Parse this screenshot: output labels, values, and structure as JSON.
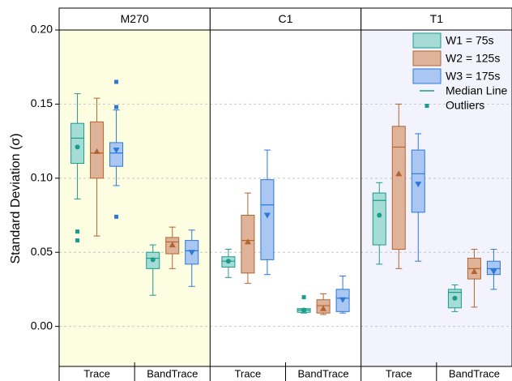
{
  "chart_data": {
    "type": "box",
    "ylabel": "Standard Deviation (σ)",
    "ylim": [
      -0.027,
      0.2
    ],
    "yticks": [
      {
        "value": 0,
        "label": "0.00"
      },
      {
        "value": 0.05,
        "label": "0.05"
      },
      {
        "value": 0.1,
        "label": "0.10"
      },
      {
        "value": 0.15,
        "label": "0.15"
      },
      {
        "value": 0.2,
        "label": "0.20"
      }
    ],
    "grid": true,
    "legend_position": "top-right",
    "median_label": "Median Line",
    "outlier_label": "Outliers",
    "series": [
      {
        "name": "W1 = 75s",
        "color": "#1a9c8c",
        "fill": "#a6dcd6"
      },
      {
        "name": "W2 = 125s",
        "color": "#b3632f",
        "fill": "#deb39a"
      },
      {
        "name": "W3 = 175s",
        "color": "#2b78d6",
        "fill": "#a9c7f2"
      }
    ],
    "panels": [
      {
        "title": "M270",
        "background": "#fdfde2",
        "categories": [
          "Trace",
          "BandTrace"
        ],
        "boxes": [
          [
            {
              "min": 0.086,
              "q1": 0.11,
              "median": 0.127,
              "q3": 0.137,
              "max": 0.157,
              "mean": 0.121,
              "outliers": [
                0.064,
                0.058
              ]
            },
            {
              "min": 0.061,
              "q1": 0.1,
              "median": 0.117,
              "q3": 0.138,
              "max": 0.154,
              "mean": 0.118
            },
            {
              "min": 0.095,
              "q1": 0.108,
              "median": 0.117,
              "q3": 0.124,
              "max": 0.146,
              "mean": 0.119,
              "outliers": [
                0.165,
                0.148,
                0.074
              ]
            }
          ],
          [
            {
              "min": 0.021,
              "q1": 0.039,
              "median": 0.046,
              "q3": 0.05,
              "max": 0.055,
              "mean": 0.045
            },
            {
              "min": 0.039,
              "q1": 0.049,
              "median": 0.057,
              "q3": 0.06,
              "max": 0.067,
              "mean": 0.055
            },
            {
              "min": 0.027,
              "q1": 0.042,
              "median": 0.051,
              "q3": 0.058,
              "max": 0.065,
              "mean": 0.05
            }
          ]
        ]
      },
      {
        "title": "C1",
        "background": "#ffffff",
        "categories": [
          "Trace",
          "BandTrace"
        ],
        "boxes": [
          [
            {
              "min": 0.033,
              "q1": 0.04,
              "median": 0.044,
              "q3": 0.047,
              "max": 0.052,
              "mean": 0.044
            },
            {
              "min": 0.029,
              "q1": 0.036,
              "median": 0.058,
              "q3": 0.075,
              "max": 0.09,
              "mean": 0.057
            },
            {
              "min": 0.035,
              "q1": 0.045,
              "median": 0.082,
              "q3": 0.099,
              "max": 0.119,
              "mean": 0.075
            }
          ],
          [
            {
              "min": 0.009,
              "q1": 0.0095,
              "median": 0.011,
              "q3": 0.012,
              "max": 0.012,
              "mean": 0.011,
              "outliers": [
                0.0197
              ]
            },
            {
              "min": 0.008,
              "q1": 0.009,
              "median": 0.014,
              "q3": 0.018,
              "max": 0.022,
              "mean": 0.012
            },
            {
              "min": 0.009,
              "q1": 0.01,
              "median": 0.019,
              "q3": 0.025,
              "max": 0.034,
              "mean": 0.018
            }
          ]
        ]
      },
      {
        "title": "T1",
        "background": "#f3f3fd",
        "categories": [
          "Trace",
          "BandTrace"
        ],
        "boxes": [
          [
            {
              "min": 0.042,
              "q1": 0.055,
              "median": 0.085,
              "q3": 0.09,
              "max": 0.097,
              "mean": 0.075
            },
            {
              "min": 0.039,
              "q1": 0.052,
              "median": 0.121,
              "q3": 0.135,
              "max": 0.15,
              "mean": 0.103
            },
            {
              "min": 0.044,
              "q1": 0.077,
              "median": 0.103,
              "q3": 0.119,
              "max": 0.13,
              "mean": 0.096
            }
          ],
          [
            {
              "min": 0.01,
              "q1": 0.0125,
              "median": 0.023,
              "q3": 0.025,
              "max": 0.028,
              "mean": 0.019
            },
            {
              "min": 0.013,
              "q1": 0.032,
              "median": 0.039,
              "q3": 0.046,
              "max": 0.052,
              "mean": 0.037
            },
            {
              "min": 0.025,
              "q1": 0.035,
              "median": 0.039,
              "q3": 0.044,
              "max": 0.052,
              "mean": 0.037
            }
          ]
        ]
      }
    ]
  }
}
